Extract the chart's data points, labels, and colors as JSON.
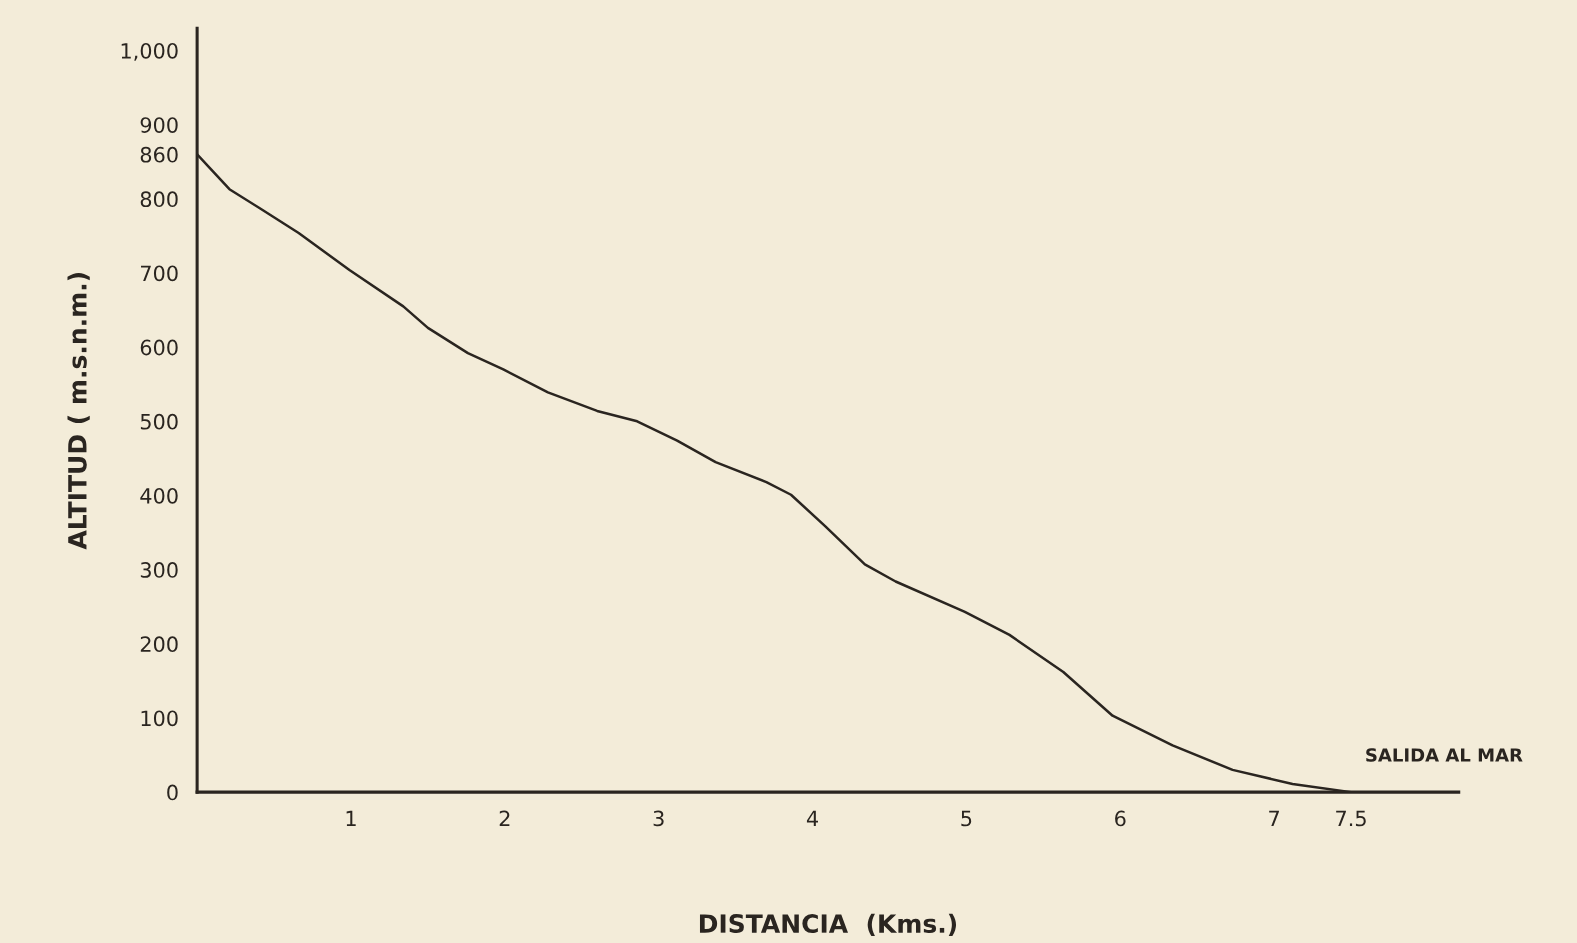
{
  "chart_data": {
    "type": "line",
    "xlabel": "DISTANCIA  (Kms.)",
    "ylabel": "ALTITUD ( m.s.n.m.)",
    "x": [
      0,
      0.08,
      0.21,
      0.41,
      0.66,
      0.99,
      1.34,
      1.5,
      1.76,
      1.99,
      2.28,
      2.6,
      2.86,
      3.12,
      3.37,
      3.7,
      3.86,
      4.08,
      4.34,
      4.54,
      4.99,
      5.28,
      5.63,
      5.95,
      6.34,
      6.73,
      7.12,
      7.5
    ],
    "series": [
      {
        "color": "#2a2520",
        "values": [
          860,
          842,
          813,
          787,
          754,
          704,
          655,
          626,
          592,
          570,
          539,
          514,
          500,
          474,
          445,
          418,
          401,
          359,
          307,
          284,
          243,
          212,
          162,
          103,
          63,
          30,
          11,
          0
        ]
      }
    ],
    "xlim": [
      0,
      8.2
    ],
    "ylim": [
      0,
      1030
    ],
    "xticks": [
      {
        "value": 0,
        "label": null
      },
      1,
      2,
      3,
      4,
      5,
      6,
      7,
      7.5
    ],
    "yticks": [
      0,
      100,
      200,
      300,
      400,
      500,
      600,
      700,
      800,
      860,
      900,
      {
        "value": 1000,
        "label": "1,000"
      }
    ],
    "annotations": [
      {
        "text": "SALIDA AL MAR",
        "x": 7.5,
        "y": 0
      }
    ],
    "grid": false,
    "marker": "none",
    "line_style": "solid"
  }
}
